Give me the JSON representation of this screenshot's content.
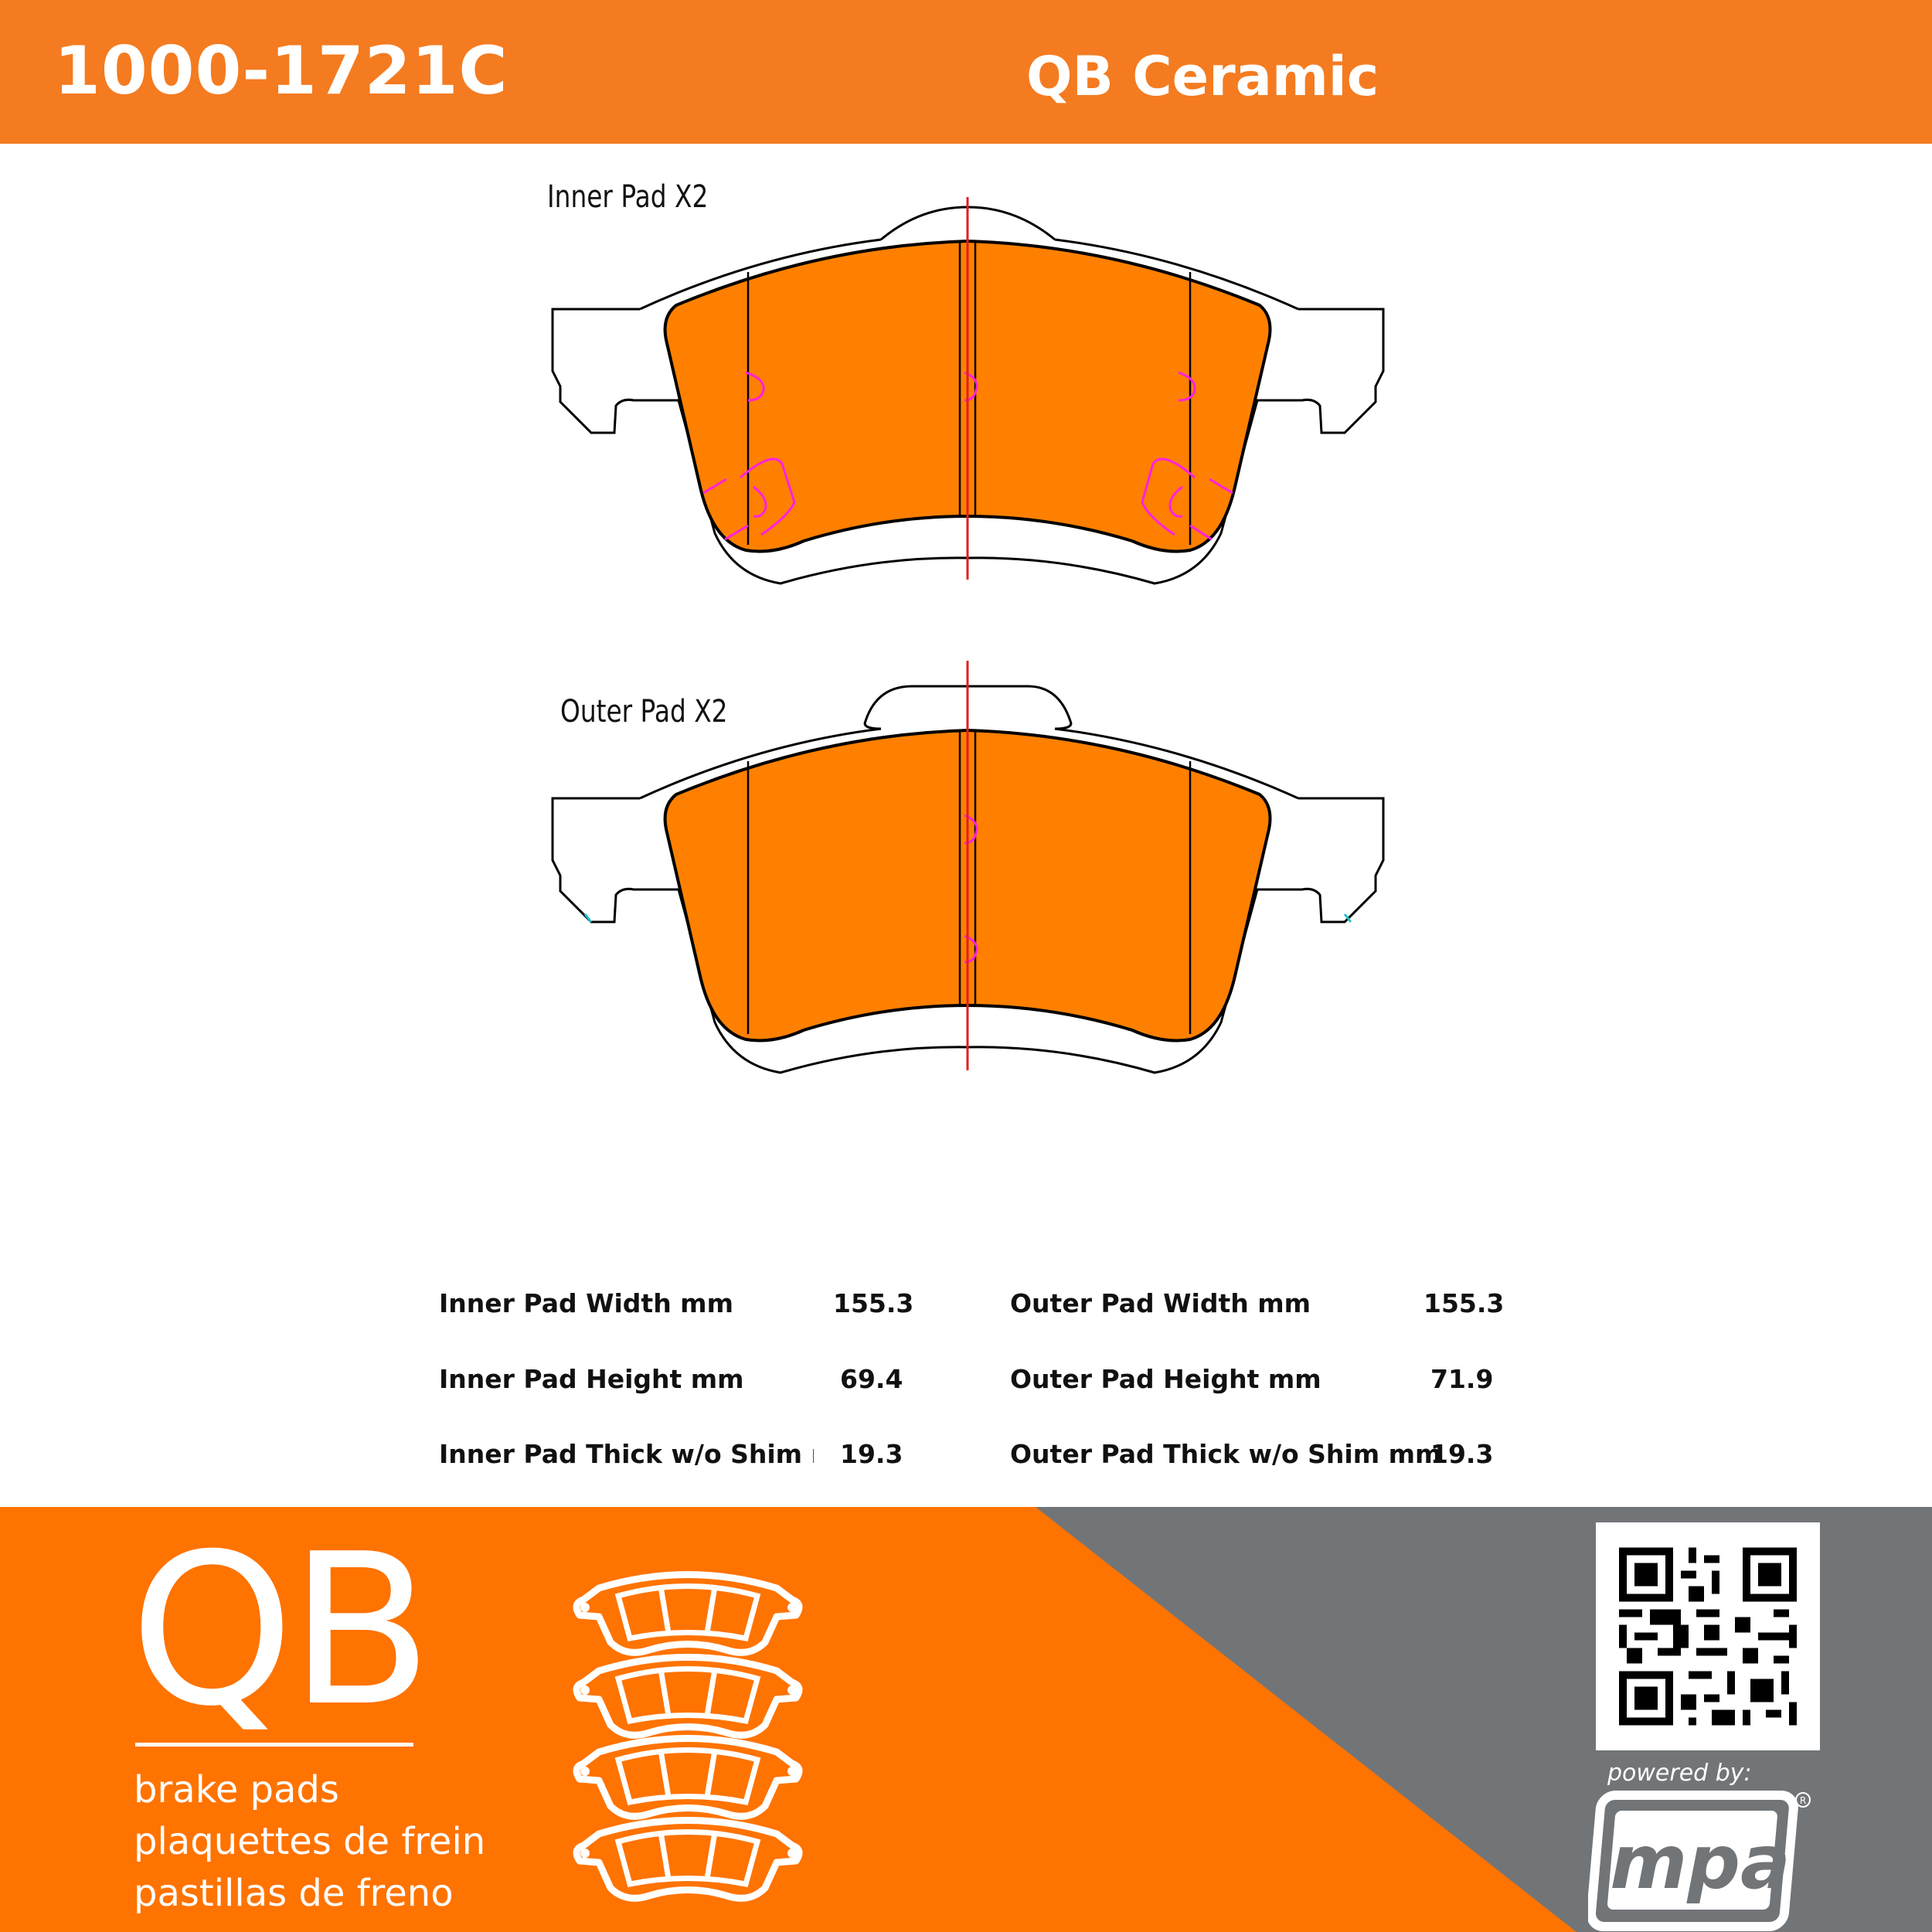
{
  "header": {
    "part_number": "1000-1721C",
    "product_line": "QB Ceramic",
    "color": "#F47B20"
  },
  "drawings": {
    "inner_label": "Inner Pad  X2",
    "outer_label": "Outer Pad  X2",
    "friction_color": "#FF8000",
    "centerline_color": "#E0201E",
    "marker_color": "#FF20E0"
  },
  "specs": [
    {
      "label": "Inner Pad Width mm",
      "value": "155.3"
    },
    {
      "label": "Inner Pad Height mm",
      "value": "69.4"
    },
    {
      "label": "Inner Pad Thick w/o Shim mm",
      "value": "19.3"
    },
    {
      "label": "Outer Pad Width mm",
      "value": "155.3"
    },
    {
      "label": "Outer Pad Height mm",
      "value": "71.9"
    },
    {
      "label": "Outer Pad Thick w/o Shim mm",
      "value": "19.3"
    }
  ],
  "footer": {
    "logo": "QB",
    "lines": [
      "brake pads",
      "plaquettes de frein",
      "pastillas de freno"
    ],
    "powered_by": "powered by:",
    "brand_logo": "mpa",
    "orange": "#FF7300",
    "gray": "#717578"
  }
}
